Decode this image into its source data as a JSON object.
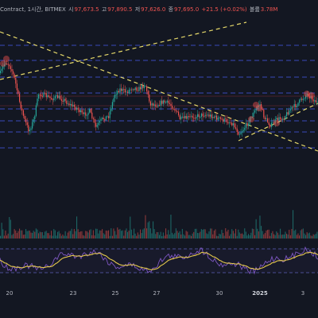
{
  "header": {
    "title": "Contract, 1시간, BITMEX",
    "open_label": "시",
    "open_value": "97,673.5",
    "high_label": "고",
    "high_value": "97,890.5",
    "low_label": "저",
    "low_value": "97,626.0",
    "close_label": "종",
    "close_value": "97,695.0",
    "change": "+21.5 (+0.02%)",
    "volume_label": "볼륨",
    "volume_value": "3.78M"
  },
  "x_axis": {
    "ticks": [
      "20",
      "23",
      "25",
      "27",
      "30",
      "2025",
      "3"
    ]
  },
  "colors": {
    "background": "#131722",
    "up": "#26a69a",
    "down": "#ef5350",
    "candle_body": "#ef5350",
    "trendline": "#e6d96a",
    "level_line": "#3f51d4",
    "rsi_line": "#7e57c2",
    "rsi_ma": "#e6c94c"
  },
  "chart_data": {
    "type": "candlestick",
    "symbol": "Contract",
    "interval": "1시간",
    "exchange": "BITMEX",
    "last_candle": {
      "open": 97673.5,
      "high": 97890.5,
      "low": 97626.0,
      "close": 97695.0,
      "change": 21.5,
      "change_pct": 0.02,
      "volume": "3.78M"
    },
    "x_ticks": [
      "20",
      "23",
      "25",
      "27",
      "30",
      "2025",
      "3"
    ],
    "panes": [
      "price",
      "volume",
      "oscillator"
    ]
  }
}
